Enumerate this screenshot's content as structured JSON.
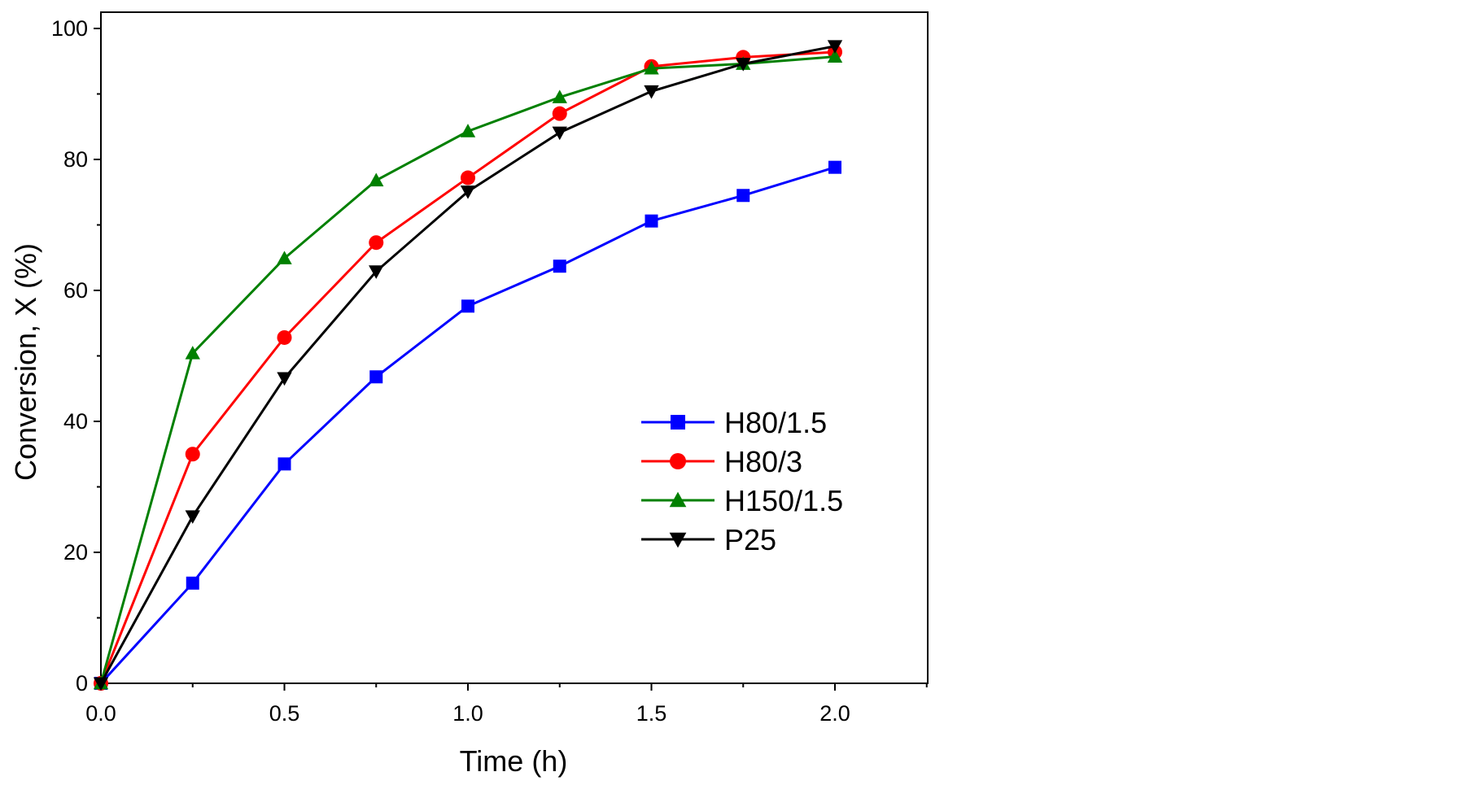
{
  "chart_data": {
    "type": "line",
    "xlabel": "Time (h)",
    "ylabel": "Conversion, X (%)",
    "xlim": [
      0.0,
      2.25
    ],
    "ylim": [
      0,
      100
    ],
    "x_ticks": [
      "0.0",
      "0.5",
      "1.0",
      "1.5",
      "2.0"
    ],
    "y_ticks": [
      "0",
      "20",
      "40",
      "60",
      "80",
      "100"
    ],
    "grid": false,
    "legend_position": "center-right",
    "x": [
      0,
      0.25,
      0.5,
      0.75,
      1.0,
      1.25,
      1.5,
      1.75,
      2.0
    ],
    "series": [
      {
        "name": "H80/1.5",
        "color": "#0000ff",
        "marker": "square",
        "values": [
          0,
          15.3,
          33.5,
          46.8,
          57.6,
          63.7,
          70.6,
          74.5,
          78.8
        ]
      },
      {
        "name": "H80/3",
        "color": "#ff0000",
        "marker": "circle",
        "values": [
          0,
          35.0,
          52.8,
          67.3,
          77.2,
          87.0,
          94.2,
          95.6,
          96.4
        ]
      },
      {
        "name": "H150/1.5",
        "color": "#008000",
        "marker": "triangle-up",
        "values": [
          0,
          50.4,
          64.9,
          76.8,
          84.3,
          89.5,
          93.9,
          94.6,
          95.7
        ]
      },
      {
        "name": "P25",
        "color": "#000000",
        "marker": "triangle-down",
        "values": [
          0,
          25.5,
          46.6,
          62.9,
          75.1,
          84.1,
          90.4,
          94.6,
          97.3
        ]
      }
    ]
  }
}
